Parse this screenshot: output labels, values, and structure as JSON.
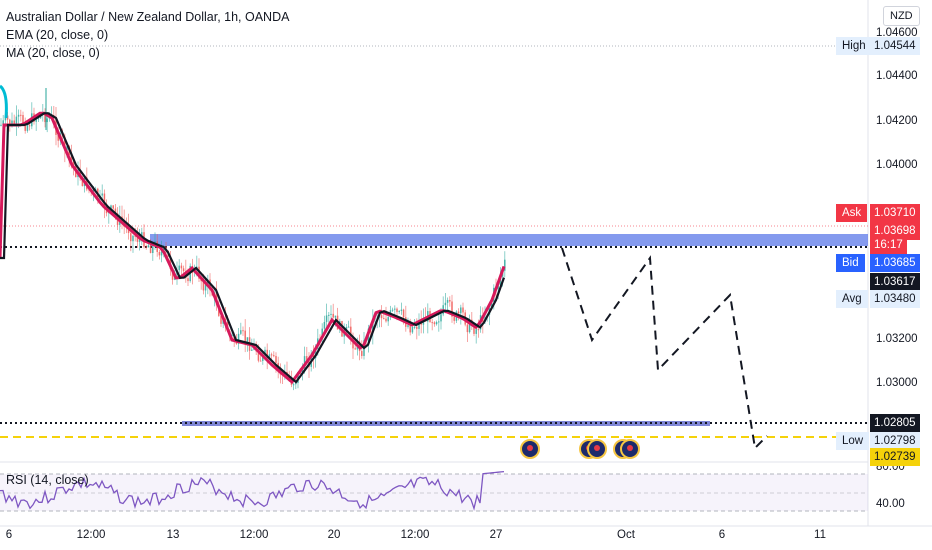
{
  "header": {
    "title": "Australian Dollar / New Zealand Dollar, 1h, OANDA",
    "ema": "EMA (20, close, 0)",
    "ma": "MA (20, close, 0)",
    "rsi": "RSI (14, close)"
  },
  "price_axis": {
    "currency": "NZD",
    "ticks": [
      "1.04600",
      "1.04400",
      "1.04200",
      "1.04000",
      "1.03200",
      "1.03000"
    ],
    "rsi_ticks": [
      "80.00",
      "40.00"
    ]
  },
  "price_labels": {
    "high_tag": "High",
    "high_value": "1.04544",
    "ask_tag": "Ask",
    "ask_value": "1.03710",
    "last_value": "1.03698",
    "countdown": "16:17",
    "bid_tag": "Bid",
    "bid_value": "1.03685",
    "level_value": "1.03617",
    "avg_tag": "Avg",
    "avg_value": "1.03480",
    "support_value": "1.02805",
    "low_tag": "Low",
    "low_value": "1.02798",
    "yellow_value": "1.02739"
  },
  "time_axis": {
    "labels": [
      "6",
      "12:00",
      "13",
      "12:00",
      "20",
      "12:00",
      "27",
      "Oct",
      "6",
      "11"
    ]
  },
  "colors": {
    "ema": "#131722",
    "ma": "#d6195b",
    "up": "#26a69a",
    "down": "#ef5350",
    "zone": "#5b78e8",
    "support": "#7f86d6",
    "yellow": "#f5d20a",
    "ask": "#f23645",
    "bid": "#2962ff",
    "rsi": "#7e57c2"
  },
  "icons": [
    "australia-flag-icon",
    "australia-flag-icon",
    "australia-flag-icon"
  ]
}
